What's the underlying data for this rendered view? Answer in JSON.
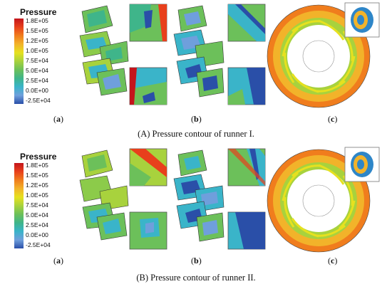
{
  "legend": {
    "title": "Pressure",
    "ticks": [
      "1.8E+05",
      "1.5E+05",
      "1.2E+05",
      "1.0E+05",
      "7.5E+04",
      "5.0E+04",
      "2.5E+04",
      "0.0E+00",
      "-2.5E+04"
    ]
  },
  "panels": [
    {
      "caption": "(A) Pressure contour of runner I.",
      "labels": [
        "a",
        "b",
        "c"
      ]
    },
    {
      "caption": "(B) Pressure contour of runner II.",
      "labels": [
        "a",
        "b",
        "c"
      ]
    }
  ]
}
